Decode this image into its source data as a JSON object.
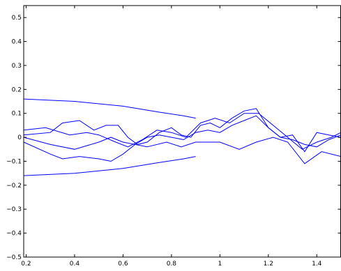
{
  "chart_data": {
    "type": "line",
    "title": "",
    "xlabel": "",
    "ylabel": "",
    "xlim": [
      0.19,
      1.5
    ],
    "ylim": [
      -0.5,
      0.55
    ],
    "grid": false,
    "x_ticks": [
      0.2,
      0.4,
      0.6,
      0.8,
      1.0,
      1.2,
      1.4
    ],
    "x_tick_labels": [
      "0.2",
      "0.4",
      "0.6",
      "0.8",
      "1",
      "1.2",
      "1.4"
    ],
    "y_ticks": [
      -0.5,
      -0.4,
      -0.3,
      -0.2,
      -0.1,
      0.0,
      0.1,
      0.2,
      0.3,
      0.4,
      0.5
    ],
    "y_tick_labels": [
      "−0.5",
      "−0.4",
      "−0.3",
      "−0.2",
      "−0.1",
      "0",
      "0.1",
      "0.2",
      "0.3",
      "0.4",
      "0.5"
    ],
    "colors": {
      "series": "#0000ff",
      "axes": "#000000",
      "background": "#ffffff"
    },
    "series": [
      {
        "x": [
          0.19,
          0.4,
          0.6,
          0.75,
          0.85,
          0.9
        ],
        "y": [
          0.16,
          0.15,
          0.13,
          0.105,
          0.09,
          0.08
        ]
      },
      {
        "x": [
          0.19,
          0.4,
          0.6,
          0.75,
          0.85,
          0.9
        ],
        "y": [
          -0.16,
          -0.15,
          -0.13,
          -0.105,
          -0.09,
          -0.08
        ]
      },
      {
        "x": [
          0.19,
          0.3,
          0.35,
          0.42,
          0.48,
          0.53,
          0.58,
          0.62,
          0.66,
          0.7,
          0.75,
          0.8,
          0.84,
          0.88,
          0.92,
          0.96,
          1.0,
          1.05,
          1.1,
          1.15,
          1.2,
          1.25,
          1.3,
          1.35,
          1.4,
          1.45,
          1.5
        ],
        "y": [
          0.01,
          0.02,
          0.06,
          0.07,
          0.03,
          0.05,
          0.05,
          0.0,
          -0.03,
          -0.02,
          0.02,
          0.04,
          0.01,
          0.0,
          0.05,
          0.06,
          0.04,
          0.08,
          0.11,
          0.12,
          0.04,
          0.0,
          0.01,
          -0.06,
          0.02,
          0.01,
          0.0
        ]
      },
      {
        "x": [
          0.19,
          0.3,
          0.35,
          0.42,
          0.5,
          0.55,
          0.6,
          0.65,
          0.7,
          0.78,
          0.84,
          0.9,
          1.0,
          1.08,
          1.15,
          1.22,
          1.28,
          1.35,
          1.42,
          1.5
        ],
        "y": [
          -0.02,
          -0.07,
          -0.09,
          -0.08,
          -0.09,
          -0.1,
          -0.07,
          -0.03,
          -0.04,
          -0.02,
          -0.04,
          -0.02,
          -0.02,
          -0.05,
          -0.02,
          0.0,
          -0.02,
          -0.11,
          -0.06,
          -0.08
        ]
      },
      {
        "x": [
          0.19,
          0.3,
          0.4,
          0.5,
          0.55,
          0.6,
          0.65,
          0.7,
          0.75,
          0.8,
          0.85,
          0.9,
          0.95,
          1.0,
          1.05,
          1.1,
          1.15,
          1.2,
          1.25,
          1.3,
          1.35,
          1.4,
          1.45,
          1.5
        ],
        "y": [
          0.0,
          -0.03,
          -0.05,
          -0.02,
          0.0,
          -0.02,
          -0.03,
          0.0,
          0.01,
          0.0,
          -0.01,
          0.02,
          0.03,
          0.02,
          0.05,
          0.07,
          0.09,
          0.04,
          0.0,
          -0.01,
          -0.03,
          -0.04,
          -0.01,
          0.01
        ]
      },
      {
        "x": [
          0.19,
          0.28,
          0.38,
          0.45,
          0.5,
          0.57,
          0.62,
          0.68,
          0.74,
          0.8,
          0.86,
          0.92,
          0.98,
          1.04,
          1.1,
          1.16,
          1.22,
          1.28,
          1.34,
          1.4,
          1.46,
          1.5
        ],
        "y": [
          0.03,
          0.04,
          0.01,
          0.02,
          0.01,
          -0.02,
          -0.04,
          -0.01,
          0.03,
          0.02,
          0.0,
          0.06,
          0.08,
          0.06,
          0.1,
          0.1,
          0.05,
          0.0,
          -0.05,
          -0.02,
          0.0,
          0.02
        ]
      }
    ]
  }
}
